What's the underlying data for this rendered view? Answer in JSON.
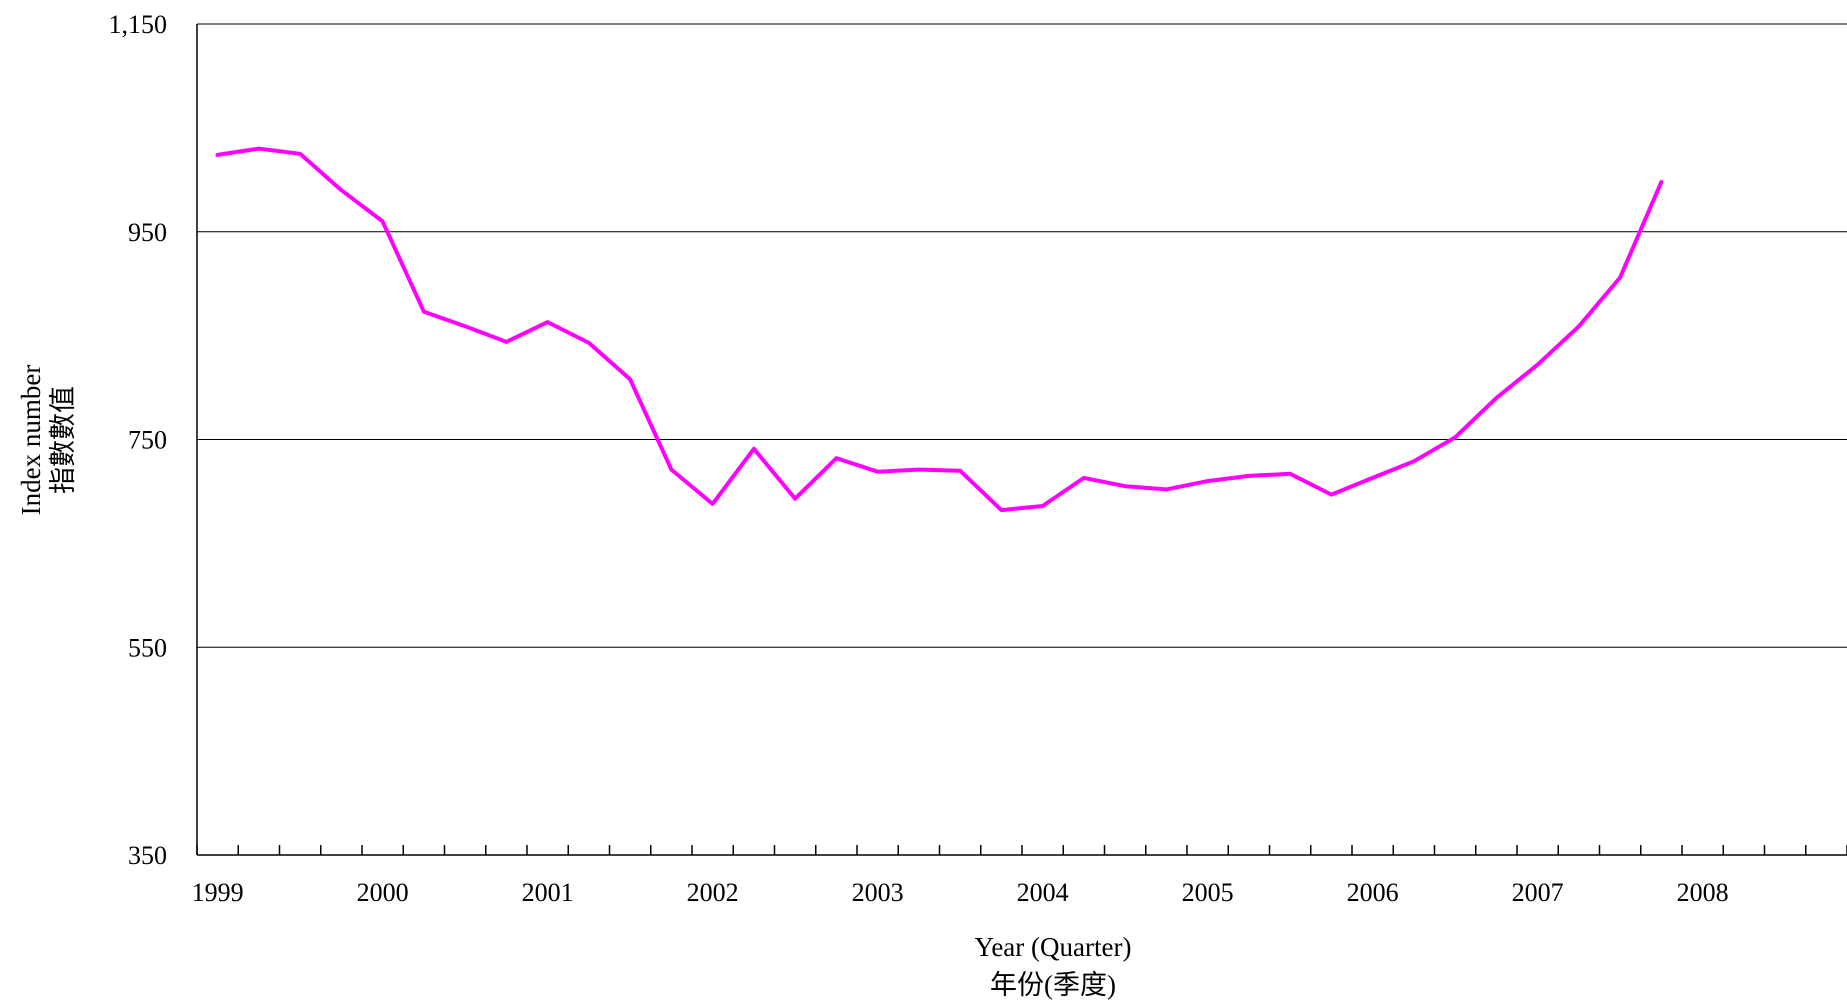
{
  "chart_data": {
    "type": "line",
    "title": "",
    "xlabel": [
      "Year (Quarter)",
      "年份(季度)"
    ],
    "ylabel": [
      "Index number",
      "指數數值"
    ],
    "ylim": [
      350,
      1150
    ],
    "yticks": [
      350,
      550,
      750,
      950,
      1150
    ],
    "ytick_labels": [
      "350",
      "550",
      "750",
      "950",
      "1,150"
    ],
    "xlim": [
      1999,
      2009
    ],
    "xtick_labels": [
      "1999",
      "2000",
      "2001",
      "2002",
      "2003",
      "2004",
      "2005",
      "2006",
      "2007",
      "2008"
    ],
    "grid": "horizontal",
    "series": [
      {
        "name": "",
        "color": "#ff00ff",
        "x": [
          "1999 Q1",
          "1999 Q2",
          "1999 Q3",
          "1999 Q4",
          "2000 Q1",
          "2000 Q2",
          "2000 Q3",
          "2000 Q4",
          "2001 Q1",
          "2001 Q2",
          "2001 Q3",
          "2001 Q4",
          "2002 Q1",
          "2002 Q2",
          "2002 Q3",
          "2002 Q4",
          "2003 Q1",
          "2003 Q2",
          "2003 Q3",
          "2003 Q4",
          "2004 Q1",
          "2004 Q2",
          "2004 Q3",
          "2004 Q4",
          "2005 Q1",
          "2005 Q2",
          "2005 Q3",
          "2005 Q4",
          "2006 Q1",
          "2006 Q2",
          "2006 Q3",
          "2006 Q4",
          "2007 Q1",
          "2007 Q2",
          "2007 Q3",
          "2007 Q4"
        ],
        "values": [
          1024,
          1030,
          1025,
          990,
          960,
          873,
          859,
          844,
          863,
          843,
          808,
          721,
          688,
          741,
          693,
          732,
          719,
          721,
          720,
          682,
          686,
          713,
          705,
          702,
          710,
          715,
          717,
          697,
          713,
          729,
          752,
          790,
          822,
          859,
          906,
          998
        ]
      }
    ]
  }
}
